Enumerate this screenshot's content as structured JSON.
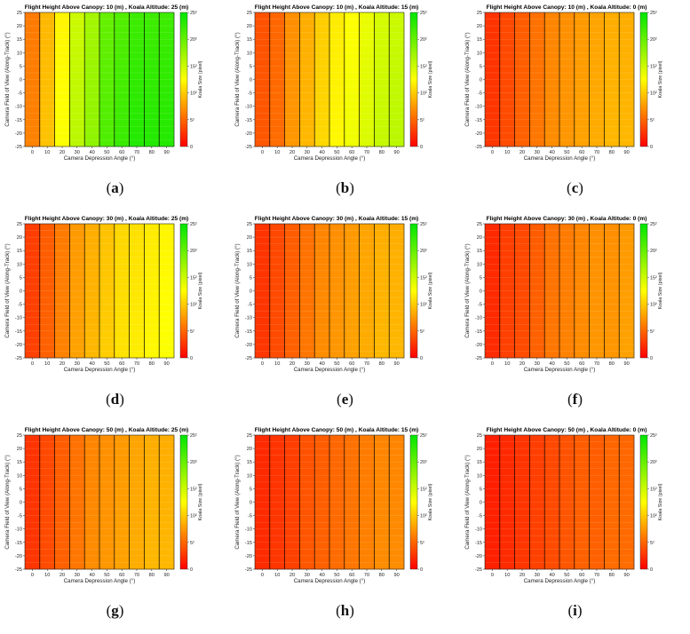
{
  "colors": {
    "low": "#ff0000",
    "mid": "#ffff00",
    "high": "#00e600"
  },
  "panels": [
    {
      "label": "a",
      "title": "Flight Height Above Canopy: 10 (m) , Koala Altitude: 25 (m)"
    },
    {
      "label": "b",
      "title": "Flight Height Above Canopy: 10 (m) , Koala Altitude: 15 (m)"
    },
    {
      "label": "c",
      "title": "Flight Height Above Canopy: 10 (m) , Koala Altitude: 0 (m)"
    },
    {
      "label": "d",
      "title": "Flight Height Above Canopy: 30 (m) , Koala Altitude: 25 (m)"
    },
    {
      "label": "e",
      "title": "Flight Height Above Canopy: 30 (m) , Koala Altitude: 15 (m)"
    },
    {
      "label": "f",
      "title": "Flight Height Above Canopy: 30 (m) , Koala Altitude: 0 (m)"
    },
    {
      "label": "g",
      "title": "Flight Height Above Canopy: 50 (m) , Koala Altitude: 25 (m)"
    },
    {
      "label": "h",
      "title": "Flight Height Above Canopy: 50 (m) , Koala Altitude: 15 (m)"
    },
    {
      "label": "i",
      "title": "Flight Height Above Canopy: 50 (m) , Koala Altitude: 0 (m)"
    }
  ],
  "chart_data": [
    {
      "type": "heatmap",
      "title": "Flight Height Above Canopy: 10 (m) , Koala Altitude: 25 (m)",
      "xlabel": "Camera Depression Angle  (°)",
      "ylabel": "Camera Field of View (Along-Track) (°)",
      "x": [
        0,
        10,
        20,
        30,
        40,
        50,
        60,
        70,
        80,
        90
      ],
      "y_range": [
        -25,
        25
      ],
      "y_ticks": [
        25,
        20,
        15,
        10,
        5,
        0,
        -5,
        -10,
        -15,
        -20,
        -25
      ],
      "colorbar": {
        "label": "Koala Size (pixel)",
        "ticks": [
          "0",
          "5²",
          "10²",
          "15²",
          "20²",
          "25²"
        ],
        "range": [
          0,
          25
        ]
      },
      "values": [
        6,
        9,
        12,
        15,
        17,
        20,
        21,
        22,
        22,
        22
      ]
    },
    {
      "type": "heatmap",
      "title": "Flight Height Above Canopy: 10 (m) , Koala Altitude: 15 (m)",
      "xlabel": "Camera Depression Angle  (°)",
      "ylabel": "Camera Field of View (Along-Track) (°)",
      "x": [
        0,
        10,
        20,
        30,
        40,
        50,
        60,
        70,
        80,
        90
      ],
      "y_range": [
        -25,
        25
      ],
      "y_ticks": [
        25,
        20,
        15,
        10,
        5,
        0,
        -5,
        -10,
        -15,
        -20,
        -25
      ],
      "colorbar": {
        "label": "Koala Size (pixel)",
        "ticks": [
          "0",
          "5²",
          "10²",
          "15²",
          "20²",
          "25²"
        ],
        "range": [
          0,
          25
        ]
      },
      "values": [
        4,
        5,
        7,
        8.5,
        10,
        11.5,
        12.5,
        13.5,
        14.5,
        15
      ]
    },
    {
      "type": "heatmap",
      "title": "Flight Height Above Canopy: 10 (m) , Koala Altitude: 0 (m)",
      "xlabel": "Camera Depression Angle  (°)",
      "ylabel": "Camera Field of View (Along-Track) (°)",
      "x": [
        0,
        10,
        20,
        30,
        40,
        50,
        60,
        70,
        80,
        90
      ],
      "y_range": [
        -25,
        25
      ],
      "y_ticks": [
        25,
        20,
        15,
        10,
        5,
        0,
        -5,
        -10,
        -15,
        -20,
        -25
      ],
      "colorbar": {
        "label": "Koala Size (pixel)",
        "ticks": [
          "0",
          "5²",
          "10²",
          "15²",
          "20²",
          "25²"
        ],
        "range": [
          0,
          25
        ]
      },
      "values": [
        2.5,
        3.5,
        4.5,
        5.5,
        6.5,
        7,
        7.5,
        8,
        8.5,
        8.5
      ]
    },
    {
      "type": "heatmap",
      "title": "Flight Height Above Canopy: 30 (m) , Koala Altitude: 25 (m)",
      "xlabel": "Camera Depression Angle  (°)",
      "ylabel": "Camera Field of View (Along-Track) (°)",
      "x": [
        0,
        10,
        20,
        30,
        40,
        50,
        60,
        70,
        80,
        90
      ],
      "y_range": [
        -25,
        25
      ],
      "y_ticks": [
        25,
        20,
        15,
        10,
        5,
        0,
        -5,
        -10,
        -15,
        -20,
        -25
      ],
      "colorbar": {
        "label": "Koala Size (pixel)",
        "ticks": [
          "0",
          "5²",
          "10²",
          "15²",
          "20²",
          "25²"
        ],
        "range": [
          0,
          25
        ]
      },
      "values": [
        3,
        4.5,
        6,
        7.5,
        8.5,
        9.5,
        10.5,
        11,
        11.5,
        12
      ]
    },
    {
      "type": "heatmap",
      "title": "Flight Height Above Canopy: 30 (m) , Koala Altitude: 15 (m)",
      "xlabel": "Camera Depression Angle  (°)",
      "ylabel": "Camera Field of View (Along-Track) (°)",
      "x": [
        0,
        10,
        20,
        30,
        40,
        50,
        60,
        70,
        80,
        90
      ],
      "y_range": [
        -25,
        25
      ],
      "y_ticks": [
        25,
        20,
        15,
        10,
        5,
        0,
        -5,
        -10,
        -15,
        -20,
        -25
      ],
      "colorbar": {
        "label": "Koala Size (pixel)",
        "ticks": [
          "0",
          "5²",
          "10²",
          "15²",
          "20²",
          "25²"
        ],
        "range": [
          0,
          25
        ]
      },
      "values": [
        2.5,
        3.5,
        4.5,
        5.5,
        6.5,
        7,
        7.5,
        8,
        8.5,
        8.5
      ]
    },
    {
      "type": "heatmap",
      "title": "Flight Height Above Canopy: 30 (m) , Koala Altitude: 0 (m)",
      "xlabel": "Camera Depression Angle  (°)",
      "ylabel": "Camera Field of View (Along-Track) (°)",
      "x": [
        0,
        10,
        20,
        30,
        40,
        50,
        60,
        70,
        80,
        90
      ],
      "y_range": [
        -25,
        25
      ],
      "y_ticks": [
        25,
        20,
        15,
        10,
        5,
        0,
        -5,
        -10,
        -15,
        -20,
        -25
      ],
      "colorbar": {
        "label": "Koala Size (pixel)",
        "ticks": [
          "0",
          "5²",
          "10²",
          "15²",
          "20²",
          "25²"
        ],
        "range": [
          0,
          25
        ]
      },
      "values": [
        2,
        3,
        3.5,
        4.5,
        5.5,
        6,
        6.5,
        7,
        7,
        7.5
      ]
    },
    {
      "type": "heatmap",
      "title": "Flight Height Above Canopy: 50 (m) , Koala Altitude: 25 (m)",
      "xlabel": "Camera Depression Angle  (°)",
      "ylabel": "Camera Field of View (Along-Track) (°)",
      "x": [
        0,
        10,
        20,
        30,
        40,
        50,
        60,
        70,
        80,
        90
      ],
      "y_range": [
        -25,
        25
      ],
      "y_ticks": [
        25,
        20,
        15,
        10,
        5,
        0,
        -5,
        -10,
        -15,
        -20,
        -25
      ],
      "colorbar": {
        "label": "Koala Size (pixel)",
        "ticks": [
          "0",
          "5²",
          "10²",
          "15²",
          "20²",
          "25²"
        ],
        "range": [
          0,
          25
        ]
      },
      "values": [
        2.5,
        3.5,
        4.5,
        5.5,
        6.5,
        7,
        7.5,
        8,
        8.5,
        8.5
      ]
    },
    {
      "type": "heatmap",
      "title": "Flight Height Above Canopy: 50 (m) , Koala Altitude: 15 (m)",
      "xlabel": "Camera Depression Angle  (°)",
      "ylabel": "Camera Field of View (Along-Track) (°)",
      "x": [
        0,
        10,
        20,
        30,
        40,
        50,
        60,
        70,
        80,
        90
      ],
      "y_range": [
        -25,
        25
      ],
      "y_ticks": [
        25,
        20,
        15,
        10,
        5,
        0,
        -5,
        -10,
        -15,
        -20,
        -25
      ],
      "colorbar": {
        "label": "Koala Size (pixel)",
        "ticks": [
          "0",
          "5²",
          "10²",
          "15²",
          "20²",
          "25²"
        ],
        "range": [
          0,
          25
        ]
      },
      "values": [
        2,
        2.5,
        3,
        4,
        4.5,
        5,
        5.5,
        6,
        6.5,
        6.5
      ]
    },
    {
      "type": "heatmap",
      "title": "Flight Height Above Canopy: 50 (m) , Koala Altitude: 0 (m)",
      "xlabel": "Camera Depression Angle  (°)",
      "ylabel": "Camera Field of View (Along-Track) (°)",
      "x": [
        0,
        10,
        20,
        30,
        40,
        50,
        60,
        70,
        80,
        90
      ],
      "y_range": [
        -25,
        25
      ],
      "y_ticks": [
        25,
        20,
        15,
        10,
        5,
        0,
        -5,
        -10,
        -15,
        -20,
        -25
      ],
      "colorbar": {
        "label": "Koala Size (pixel)",
        "ticks": [
          "0",
          "5²",
          "10²",
          "15²",
          "20²",
          "25²"
        ],
        "range": [
          0,
          25
        ]
      },
      "values": [
        1.5,
        2,
        2.5,
        3,
        3.5,
        4,
        4.5,
        4.5,
        5,
        5
      ]
    }
  ]
}
